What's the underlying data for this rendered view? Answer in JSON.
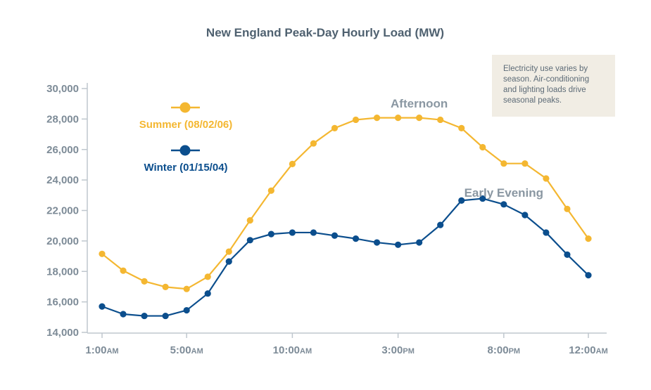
{
  "chart_data": {
    "type": "line",
    "title": "New England Peak-Day Hourly Load (MW)",
    "xlabel": "",
    "ylabel": "",
    "ylim": [
      14000,
      30000
    ],
    "yticks": [
      14000,
      16000,
      18000,
      20000,
      22000,
      24000,
      26000,
      28000,
      30000
    ],
    "ytick_labels": [
      "14,000",
      "16,000",
      "18,000",
      "20,000",
      "22,000",
      "24,000",
      "26,000",
      "28,000",
      "30,000"
    ],
    "x": [
      1,
      2,
      3,
      4,
      5,
      6,
      7,
      8,
      9,
      10,
      11,
      12,
      13,
      14,
      15,
      16,
      17,
      18,
      19,
      20,
      21,
      22,
      23,
      24
    ],
    "xlim": [
      1,
      24
    ],
    "xticks": [
      {
        "hour": 1,
        "main": "1:00",
        "suffix": "AM"
      },
      {
        "hour": 5,
        "main": "5:00",
        "suffix": "AM"
      },
      {
        "hour": 10,
        "main": "10:00",
        "suffix": "AM"
      },
      {
        "hour": 15,
        "main": "3:00",
        "suffix": "PM"
      },
      {
        "hour": 20,
        "main": "8:00",
        "suffix": "PM"
      },
      {
        "hour": 24,
        "main": "12:00",
        "suffix": "AM"
      }
    ],
    "series": [
      {
        "name": "Summer (08/02/06)",
        "color": "#f4b731",
        "values": [
          19150,
          18050,
          17350,
          16980,
          16850,
          17650,
          19300,
          21350,
          23300,
          25050,
          26400,
          27400,
          27950,
          28080,
          28080,
          28080,
          27950,
          27400,
          26150,
          25080,
          25080,
          24100,
          22100,
          20150
        ]
      },
      {
        "name": "Winter (01/15/04)",
        "color": "#0b4e8d",
        "values": [
          15700,
          15200,
          15080,
          15080,
          15450,
          16550,
          18650,
          20050,
          20450,
          20550,
          20550,
          20350,
          20150,
          19900,
          19750,
          19900,
          21050,
          22650,
          22780,
          22400,
          21700,
          20550,
          19100,
          17750
        ]
      }
    ],
    "legend": {
      "position": "top-left",
      "entries": [
        "Summer (08/02/06)",
        "Winter (01/15/04)"
      ]
    },
    "annotations": [
      {
        "text": "Afternoon",
        "x": 16,
        "y": 28750
      },
      {
        "text": "Early Evening",
        "x": 20,
        "y": 22900
      }
    ],
    "note": "Electricity use varies by season. Air-conditioning and lighting loads drive seasonal peaks.",
    "grid": false
  }
}
